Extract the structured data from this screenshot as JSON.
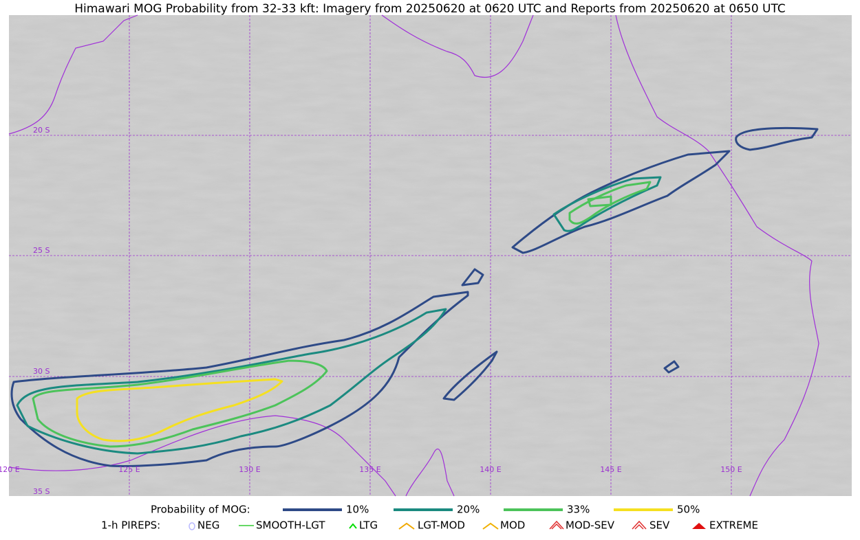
{
  "title": "Himawari MOG Probability from 32-33 kft: Imagery from 20250620 at 0620 UTC and Reports from 20250620 at 0650 UTC",
  "map": {
    "lat_labels": [
      "20 S",
      "25 S",
      "30 S",
      "35 S"
    ],
    "lon_labels": [
      "120 E",
      "125 E",
      "130 E",
      "135 E",
      "140 E",
      "145 E",
      "150 E"
    ]
  },
  "legend": {
    "probability": {
      "title": "Probability of MOG:",
      "items": [
        {
          "label": "10%",
          "color": "#2e4a87"
        },
        {
          "label": "20%",
          "color": "#1b8a80"
        },
        {
          "label": "33%",
          "color": "#4cc35a"
        },
        {
          "label": "50%",
          "color": "#f5e020"
        }
      ]
    },
    "pireps": {
      "title": "1-h PIREPS:",
      "items": [
        "NEG",
        "SMOOTH-LGT",
        "LTG",
        "LGT-MOD",
        "MOD",
        "MOD-SEV",
        "SEV",
        "EXTREME"
      ]
    }
  }
}
